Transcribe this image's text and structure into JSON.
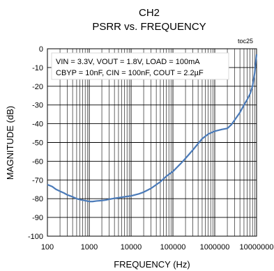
{
  "chart_data": {
    "type": "line",
    "title": "CH2",
    "subtitle": "PSRR vs. FREQUENCY",
    "tag": "toc25",
    "xlabel": "FREQUENCY (Hz)",
    "ylabel": "MAGNITUDE (dB)",
    "x_scale": "log",
    "xlim": [
      100,
      10000000
    ],
    "ylim": [
      -100,
      0
    ],
    "x_ticks": [
      100,
      1000,
      10000,
      100000,
      1000000,
      10000000
    ],
    "x_tick_labels": [
      "100",
      "1000",
      "10000",
      "100000",
      "1000000",
      "10000000"
    ],
    "y_ticks": [
      0,
      -10,
      -20,
      -30,
      -40,
      -50,
      -60,
      -70,
      -80,
      -90,
      -100
    ],
    "y_tick_labels": [
      "0",
      "-10",
      "-20",
      "-30",
      "-40",
      "-50",
      "-60",
      "-70",
      "-80",
      "-90",
      "-100"
    ],
    "grid": true,
    "line_color": "#4a7ab8",
    "annotation": [
      "VIN = 3.3V, VOUT = 1.8V, LOAD = 100mA",
      "CBYP = 10nF, CIN = 100nF, COUT = 2.2µF"
    ],
    "series": [
      {
        "x": [
          100,
          130,
          160,
          200,
          250,
          300,
          350,
          400,
          500,
          600,
          700,
          800,
          1000,
          1200,
          1500,
          2000,
          2500,
          3000,
          4000,
          5000,
          7000,
          10000,
          15000,
          20000,
          30000,
          50000,
          70000,
          100000,
          150000,
          200000,
          300000,
          500000,
          700000,
          1000000,
          1500000,
          2000000,
          2500000,
          3000000,
          4000000,
          5000000,
          6000000,
          7000000,
          8000000,
          9000000,
          10000000
        ],
        "y": [
          -72.5,
          -73.5,
          -75,
          -76,
          -77,
          -78,
          -78.5,
          -79,
          -80,
          -80.5,
          -80.8,
          -81,
          -81.5,
          -81.5,
          -81.2,
          -81,
          -80.7,
          -80.3,
          -79.8,
          -79.5,
          -79,
          -78.5,
          -77.5,
          -76.5,
          -74.5,
          -71,
          -68,
          -65.5,
          -61.5,
          -58.5,
          -54,
          -48,
          -45.5,
          -44,
          -43,
          -42.5,
          -40.5,
          -38,
          -34,
          -30,
          -27,
          -24,
          -20,
          -13,
          -3
        ]
      }
    ]
  }
}
